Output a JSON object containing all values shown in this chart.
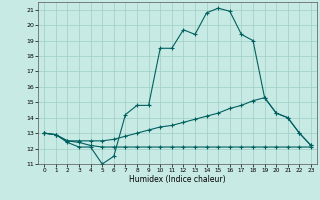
{
  "xlabel": "Humidex (Indice chaleur)",
  "xlim": [
    -0.5,
    23.5
  ],
  "ylim": [
    11,
    21.5
  ],
  "xticks": [
    0,
    1,
    2,
    3,
    4,
    5,
    6,
    7,
    8,
    9,
    10,
    11,
    12,
    13,
    14,
    15,
    16,
    17,
    18,
    19,
    20,
    21,
    22,
    23
  ],
  "yticks": [
    11,
    12,
    13,
    14,
    15,
    16,
    17,
    18,
    19,
    20,
    21
  ],
  "bg_color": "#c8eae4",
  "grid_color": "#9ecec4",
  "line_color": "#006060",
  "line1_x": [
    0,
    1,
    2,
    3,
    4,
    5,
    6,
    7,
    8,
    9,
    10,
    11,
    12,
    13,
    14,
    15,
    16,
    17,
    18,
    19,
    20,
    21,
    22,
    23
  ],
  "line1_y": [
    13,
    12.9,
    12.4,
    12.1,
    12.1,
    11.0,
    11.5,
    14.2,
    14.8,
    14.8,
    18.5,
    18.5,
    19.7,
    19.4,
    20.8,
    21.1,
    20.9,
    19.4,
    19.0,
    15.3,
    14.3,
    14.0,
    13.0,
    12.2
  ],
  "line2_x": [
    0,
    1,
    2,
    3,
    4,
    5,
    6,
    7,
    8,
    9,
    10,
    11,
    12,
    13,
    14,
    15,
    16,
    17,
    18,
    19,
    20,
    21,
    22,
    23
  ],
  "line2_y": [
    13,
    12.9,
    12.5,
    12.5,
    12.5,
    12.5,
    12.6,
    12.8,
    13.0,
    13.2,
    13.4,
    13.5,
    13.7,
    13.9,
    14.1,
    14.3,
    14.6,
    14.8,
    15.1,
    15.3,
    14.3,
    14.0,
    13.0,
    12.2
  ],
  "line3_x": [
    0,
    1,
    2,
    3,
    4,
    5,
    6,
    7,
    8,
    9,
    10,
    11,
    12,
    13,
    14,
    15,
    16,
    17,
    18,
    19,
    20,
    21,
    22,
    23
  ],
  "line3_y": [
    13,
    12.9,
    12.5,
    12.4,
    12.2,
    12.1,
    12.1,
    12.1,
    12.1,
    12.1,
    12.1,
    12.1,
    12.1,
    12.1,
    12.1,
    12.1,
    12.1,
    12.1,
    12.1,
    12.1,
    12.1,
    12.1,
    12.1,
    12.1
  ]
}
